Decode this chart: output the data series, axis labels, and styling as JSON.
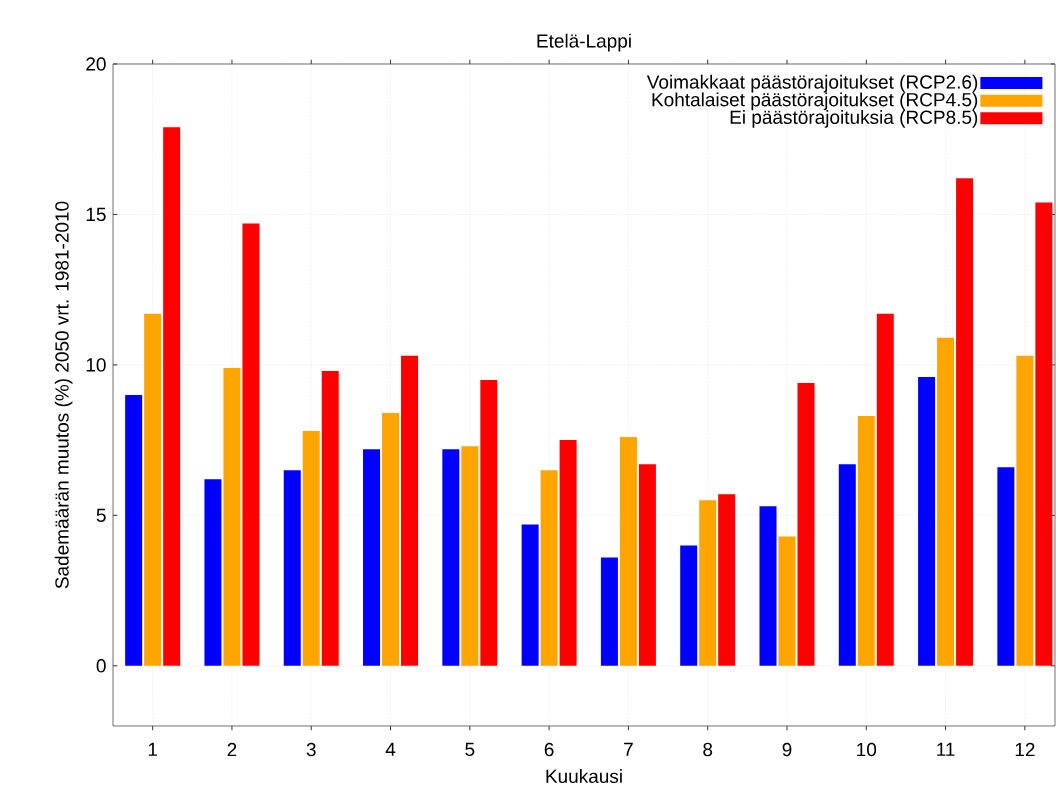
{
  "chart_data": {
    "type": "bar",
    "title": "Etelä-Lappi",
    "xlabel": "Kuukausi",
    "ylabel": "Sademäärän muutos (%) 2050 vrt. 1981-2010",
    "categories": [
      "1",
      "2",
      "3",
      "4",
      "5",
      "6",
      "7",
      "8",
      "9",
      "10",
      "11",
      "12"
    ],
    "series": [
      {
        "name": "Voimakkaat päästörajoitukset (RCP2.6)",
        "color": "#0000ff",
        "values": [
          9.0,
          6.2,
          6.5,
          7.2,
          7.2,
          4.7,
          3.6,
          4.0,
          5.3,
          6.7,
          9.6,
          6.6
        ]
      },
      {
        "name": "Kohtalaiset päästörajoitukset (RCP4.5)",
        "color": "#ffa500",
        "values": [
          11.7,
          9.9,
          7.8,
          8.4,
          7.3,
          6.5,
          7.6,
          5.5,
          4.3,
          8.3,
          10.9,
          10.3
        ]
      },
      {
        "name": "Ei päästörajoituksia (RCP8.5)",
        "color": "#ff0000",
        "values": [
          17.9,
          14.7,
          9.8,
          10.3,
          9.5,
          7.5,
          6.7,
          5.7,
          9.4,
          11.7,
          16.2,
          15.4
        ]
      }
    ],
    "ylim": [
      -2,
      20
    ],
    "yticks": [
      0,
      5,
      10,
      15,
      20
    ],
    "grid": true,
    "legend": "top right"
  }
}
